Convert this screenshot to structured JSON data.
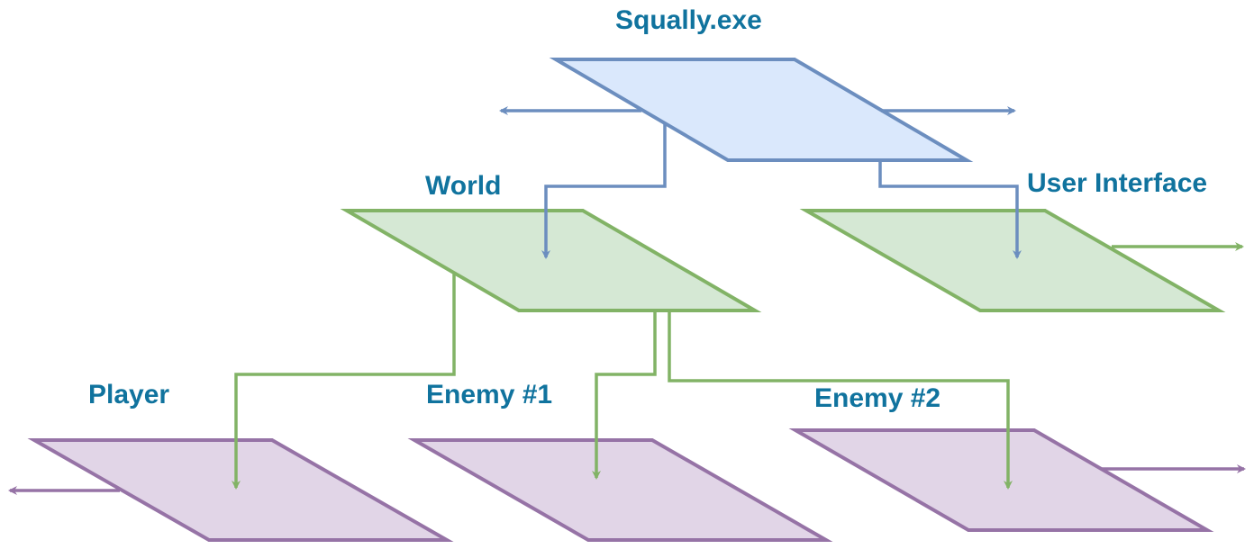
{
  "diagram": {
    "root": {
      "label": "Squally.exe",
      "fill": "#dae8fc",
      "stroke": "#6c8ebf"
    },
    "level1": [
      {
        "label": "World",
        "fill": "#d5e8d4",
        "stroke": "#82b366"
      },
      {
        "label": "User Interface",
        "fill": "#d5e8d4",
        "stroke": "#82b366"
      }
    ],
    "level2": [
      {
        "label": "Player",
        "fill": "#e1d5e7",
        "stroke": "#9673a6"
      },
      {
        "label": "Enemy #1",
        "fill": "#e1d5e7",
        "stroke": "#9673a6"
      },
      {
        "label": "Enemy #2",
        "fill": "#e1d5e7",
        "stroke": "#9673a6"
      }
    ],
    "label_color": "#10739e"
  }
}
